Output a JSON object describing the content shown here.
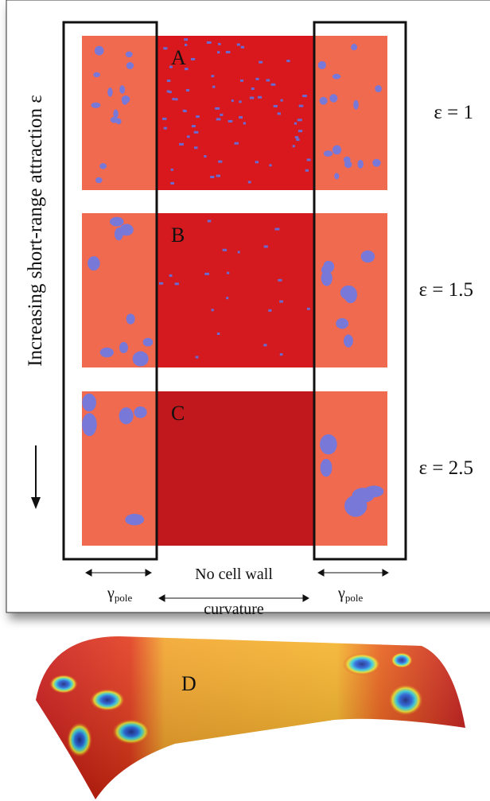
{
  "axis_label": "Increasing short-range attraction ε",
  "panels": [
    {
      "label": "A",
      "epsilon": "ε = 1"
    },
    {
      "label": "B",
      "epsilon": "ε = 1.5"
    },
    {
      "label": "C",
      "epsilon": "ε = 2.5"
    }
  ],
  "bottom_labels": {
    "pole_symbol": "γ",
    "pole_subscript": "pole",
    "middle_line1": "No cell wall",
    "middle_line2": "curvature"
  },
  "surface_label": "D"
}
